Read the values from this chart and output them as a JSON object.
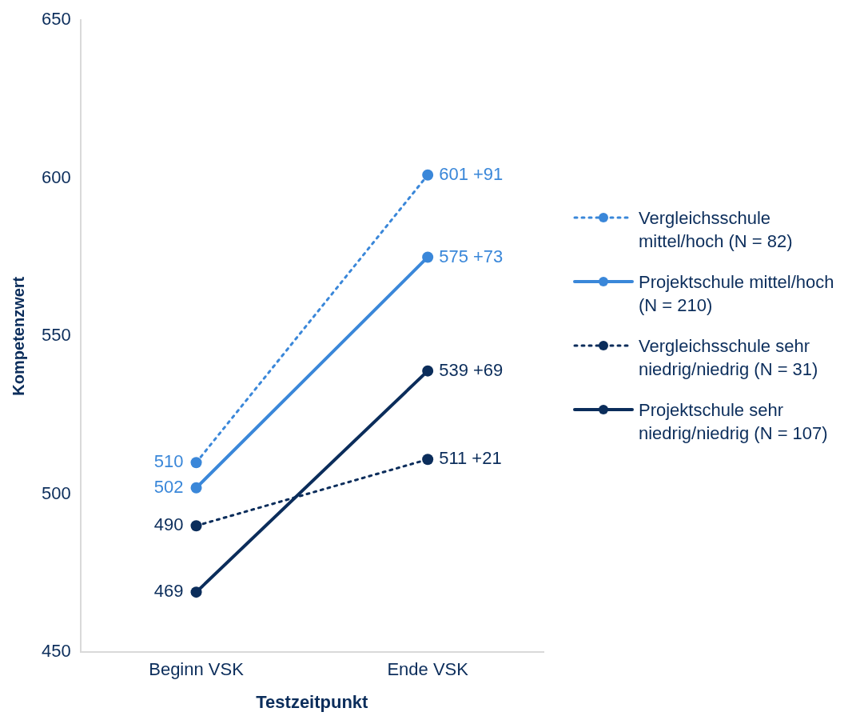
{
  "chart_data": {
    "type": "line",
    "xlabel": "Testzeitpunkt",
    "ylabel": "Kompetenzwert",
    "categories": [
      "Beginn VSK",
      "Ende VSK"
    ],
    "ylim": [
      450,
      650
    ],
    "yticks": [
      450,
      500,
      550,
      600,
      650
    ],
    "grid": false,
    "legend": "right",
    "marker": "circle",
    "series": [
      {
        "name": "Vergleichsschule mittel/hoch (N = 82)",
        "color": "#3a87d9",
        "values": [
          510,
          601
        ],
        "line_style": "dotted",
        "value_labels": [
          "510",
          "601 +91"
        ]
      },
      {
        "name": "Projektschule mittel/hoch (N = 210)",
        "color": "#3a87d9",
        "values": [
          502,
          575
        ],
        "line_style": "solid",
        "value_labels": [
          "502",
          "575 +73"
        ]
      },
      {
        "name": "Vergleichsschule sehr niedrig/niedrig (N = 31)",
        "color": "#0b2d5b",
        "values": [
          490,
          511
        ],
        "line_style": "dotted",
        "value_labels": [
          "490",
          "511 +21"
        ]
      },
      {
        "name": "Projektschule sehr niedrig/niedrig (N = 107)",
        "color": "#0b2d5b",
        "values": [
          469,
          539
        ],
        "line_style": "solid",
        "value_labels": [
          "469",
          "539 +69"
        ]
      }
    ]
  }
}
